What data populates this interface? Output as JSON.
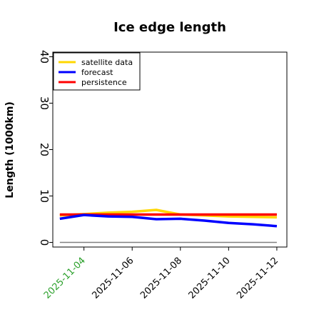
{
  "chart_data": {
    "type": "line",
    "title": "Ice edge length",
    "ylabel": "Length (1000km)",
    "xlabel": "",
    "x_axis_type": "date",
    "xlim": [
      "2025-11-02T17:00",
      "2025-11-12T10:00"
    ],
    "ylim": [
      -1,
      41
    ],
    "yticks": [
      0,
      10,
      20,
      30,
      40
    ],
    "xticks": [
      {
        "date": "2025-11-04",
        "label": "2025-11-04",
        "color": "#2ca02c"
      },
      {
        "date": "2025-11-06",
        "label": "2025-11-06",
        "color": "#000000"
      },
      {
        "date": "2025-11-08",
        "label": "2025-11-08",
        "color": "#000000"
      },
      {
        "date": "2025-11-10",
        "label": "2025-11-10",
        "color": "#000000"
      },
      {
        "date": "2025-11-12",
        "label": "2025-11-12",
        "color": "#000000"
      }
    ],
    "grid": false,
    "legend_position": "top-left",
    "x": [
      "2025-11-03",
      "2025-11-04",
      "2025-11-05",
      "2025-11-06",
      "2025-11-07",
      "2025-11-08",
      "2025-11-09",
      "2025-11-10",
      "2025-11-11",
      "2025-11-12"
    ],
    "series": [
      {
        "name": "satellite data",
        "color": "#ffd700",
        "values": [
          5.8,
          6.1,
          6.4,
          6.6,
          7.0,
          6.0,
          5.8,
          5.6,
          5.5,
          5.4
        ]
      },
      {
        "name": "forecast",
        "color": "#0000ff",
        "values": [
          5.1,
          5.9,
          5.6,
          5.5,
          5.0,
          5.1,
          4.7,
          4.2,
          3.9,
          3.5
        ]
      },
      {
        "name": "persistence",
        "color": "#ff0000",
        "values": [
          6.0,
          6.0,
          6.0,
          6.0,
          6.0,
          6.0,
          6.0,
          6.0,
          6.0,
          6.0
        ]
      }
    ],
    "reference_line": {
      "value": 0,
      "color": "#808080"
    }
  }
}
